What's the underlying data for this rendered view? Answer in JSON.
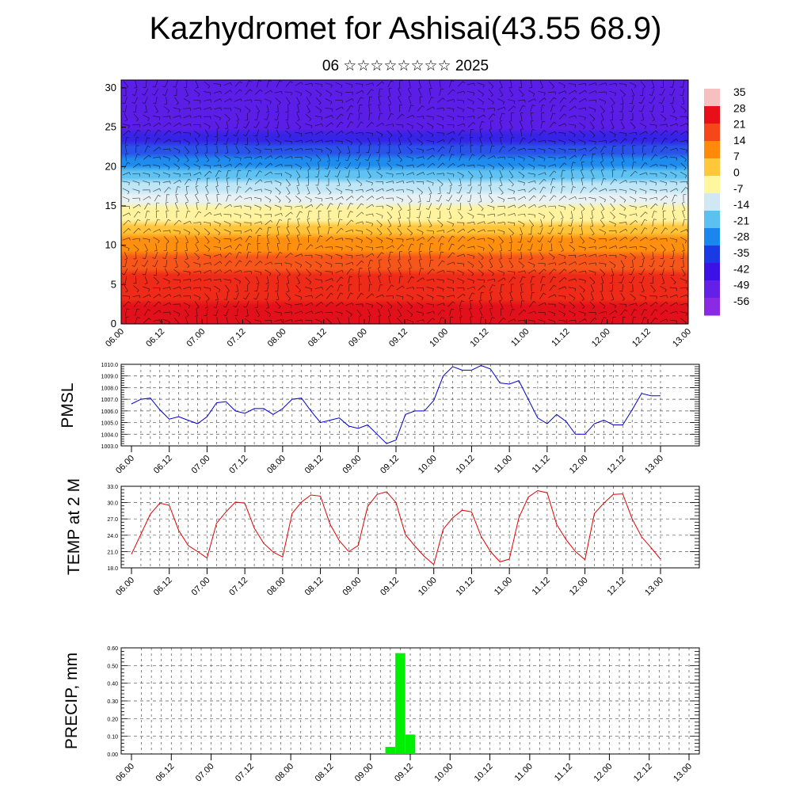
{
  "title": "Kazhydromet for Ashisai(43.55 68.9)",
  "subtitle": "06 ☆☆☆☆☆☆☆☆ 2025",
  "x_ticks": [
    "06.00",
    "06.12",
    "07.00",
    "07.12",
    "08.00",
    "08.12",
    "09.00",
    "09.12",
    "10.00",
    "10.12",
    "11.00",
    "11.12",
    "12.00",
    "12.12",
    "13.00"
  ],
  "chart_data": [
    {
      "type": "heatmap",
      "name": "cross-section",
      "ylim": [
        0,
        31
      ],
      "yticks": [
        "0",
        "5",
        "10",
        "15",
        "20",
        "25",
        "30"
      ],
      "x": [
        "06.00",
        "06.12",
        "07.00",
        "07.12",
        "08.00",
        "08.12",
        "09.00",
        "09.12",
        "10.00",
        "10.12",
        "11.00",
        "11.12",
        "12.00",
        "12.12",
        "13.00"
      ],
      "colorbar": {
        "labels": [
          "35",
          "28",
          "21",
          "14",
          "7",
          "0",
          "-7",
          "-14",
          "-21",
          "-28",
          "-35",
          "-42",
          "-49",
          "-56"
        ],
        "colors": [
          "#f6c0c0",
          "#e80f18",
          "#f6471a",
          "#ff8a0a",
          "#ffc73a",
          "#fff7a0",
          "#cfe8f4",
          "#5cc0f0",
          "#1a86ee",
          "#1a3ae6",
          "#3a12e6",
          "#6420e6",
          "#8a2ae2"
        ]
      },
      "temperature_profile": [
        {
          "level": 0,
          "value": 33
        },
        {
          "level": 5,
          "value": 24
        },
        {
          "level": 10,
          "value": 12
        },
        {
          "level": 15,
          "value": -8
        },
        {
          "level": 20,
          "value": -30
        },
        {
          "level": 25,
          "value": -50
        },
        {
          "level": 30,
          "value": -56
        }
      ]
    },
    {
      "type": "line",
      "name": "PMSL",
      "ylabel": "PMSL",
      "ylim": [
        1003,
        1010
      ],
      "yticks": [
        "1010.0",
        "1009.0",
        "1008.0",
        "1007.0",
        "1006.0",
        "1005.0",
        "1004.0",
        "1003.0"
      ],
      "color": "#0000cc",
      "x": [
        "06.00",
        "06.03",
        "06.06",
        "06.09",
        "06.12",
        "06.15",
        "06.18",
        "06.21",
        "07.00",
        "07.03",
        "07.06",
        "07.09",
        "07.12",
        "07.15",
        "07.18",
        "07.21",
        "08.00",
        "08.03",
        "08.06",
        "08.09",
        "08.12",
        "08.15",
        "08.18",
        "08.21",
        "09.00",
        "09.03",
        "09.06",
        "09.09",
        "09.12",
        "09.15",
        "09.18",
        "09.21",
        "10.00",
        "10.03",
        "10.06",
        "10.09",
        "10.12",
        "10.15",
        "10.18",
        "10.21",
        "11.00",
        "11.03",
        "11.06",
        "11.09",
        "11.12",
        "11.15",
        "11.18",
        "11.21",
        "12.00",
        "12.03",
        "12.06",
        "12.09",
        "12.12",
        "12.15",
        "12.18",
        "12.21",
        "13.00"
      ],
      "values": [
        1006.6,
        1007.0,
        1007.1,
        1006.1,
        1005.3,
        1005.5,
        1005.2,
        1004.9,
        1005.5,
        1006.7,
        1006.8,
        1006.0,
        1005.8,
        1006.2,
        1006.2,
        1005.7,
        1006.2,
        1007.0,
        1007.1,
        1006.0,
        1005.0,
        1005.2,
        1005.4,
        1004.7,
        1004.5,
        1004.8,
        1004.0,
        1003.2,
        1003.5,
        1005.7,
        1006.0,
        1006.0,
        1006.9,
        1009.0,
        1009.8,
        1009.5,
        1009.5,
        1009.9,
        1009.6,
        1008.4,
        1008.3,
        1008.6,
        1007.0,
        1005.4,
        1004.9,
        1005.7,
        1005.1,
        1004.0,
        1004.0,
        1004.9,
        1005.2,
        1004.8,
        1004.8,
        1006.1,
        1007.5,
        1007.3,
        1007.3
      ]
    },
    {
      "type": "line",
      "name": "TEMP",
      "ylabel": "TEMP at 2 M",
      "ylim": [
        18,
        33
      ],
      "yticks": [
        "33.0",
        "30.0",
        "27.0",
        "24.0",
        "21.0",
        "18.0"
      ],
      "color": "#dd0000",
      "x": [
        "06.00",
        "06.03",
        "06.06",
        "06.09",
        "06.12",
        "06.15",
        "06.18",
        "06.21",
        "07.00",
        "07.03",
        "07.06",
        "07.09",
        "07.12",
        "07.15",
        "07.18",
        "07.21",
        "08.00",
        "08.03",
        "08.06",
        "08.09",
        "08.12",
        "08.15",
        "08.18",
        "08.21",
        "09.00",
        "09.03",
        "09.06",
        "09.09",
        "09.12",
        "09.15",
        "09.18",
        "09.21",
        "10.00",
        "10.03",
        "10.06",
        "10.09",
        "10.12",
        "10.15",
        "10.18",
        "10.21",
        "11.00",
        "11.03",
        "11.06",
        "11.09",
        "11.12",
        "11.15",
        "11.18",
        "11.21",
        "12.00",
        "12.03",
        "12.06",
        "12.09",
        "12.12",
        "12.15",
        "12.18",
        "12.21",
        "13.00"
      ],
      "values": [
        20.5,
        24.2,
        27.9,
        29.9,
        29.5,
        24.9,
        22.1,
        21.0,
        19.8,
        26.2,
        28.3,
        30.1,
        29.9,
        25.3,
        22.5,
        20.9,
        20.0,
        28.0,
        30.1,
        31.4,
        31.2,
        26.1,
        23.0,
        21.0,
        22.1,
        29.3,
        31.5,
        32.0,
        30.0,
        24.1,
        22.0,
        20.1,
        18.6,
        25.1,
        27.2,
        28.6,
        28.3,
        23.8,
        21.0,
        19.1,
        19.6,
        27.2,
        31.0,
        32.2,
        31.8,
        26.0,
        23.2,
        21.0,
        19.5,
        28.0,
        29.9,
        31.5,
        31.6,
        27.0,
        23.7,
        21.7,
        19.6
      ]
    },
    {
      "type": "bar",
      "name": "PRECIP",
      "ylabel": "PRECIP, mm",
      "ylim": [
        0,
        0.6
      ],
      "yticks": [
        "0.60",
        "0.50",
        "0.40",
        "0.30",
        "0.20",
        "0.10",
        "0.00"
      ],
      "color": "#00ee00",
      "x": [
        "09.06",
        "09.09",
        "09.12"
      ],
      "values": [
        0.04,
        0.57,
        0.11
      ]
    }
  ]
}
